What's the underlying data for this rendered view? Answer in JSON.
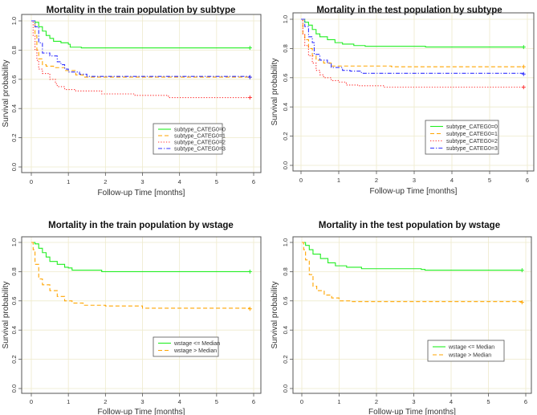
{
  "colors": {
    "0": "#22ee22",
    "1": "#ffa500",
    "2": "#ff3333",
    "3": "#3333ff",
    "grid": "#eeeacc",
    "frame": "#555555"
  },
  "chart_data": [
    {
      "type": "line",
      "title": "Mortality in the train population by subtype",
      "xlabel": "Follow-up Time [months]",
      "ylabel": "Survival probability",
      "xlim": [
        0,
        6
      ],
      "ylim": [
        0,
        1
      ],
      "xticks": [
        "0",
        "1",
        "2",
        "3",
        "4",
        "5",
        "6"
      ],
      "yticks": [
        "0.0",
        "0.2",
        "0.4",
        "0.6",
        "0.8",
        "1.0"
      ],
      "grid": true,
      "legend_position": "bottom-right",
      "series": [
        {
          "name": "subtype_CATEG0=0",
          "style": "solid",
          "color_key": "0",
          "points": [
            [
              0,
              1
            ],
            [
              0.1,
              0.99
            ],
            [
              0.2,
              0.96
            ],
            [
              0.3,
              0.93
            ],
            [
              0.4,
              0.9
            ],
            [
              0.5,
              0.88
            ],
            [
              0.6,
              0.86
            ],
            [
              0.8,
              0.85
            ],
            [
              1.0,
              0.84
            ],
            [
              1.05,
              0.82
            ],
            [
              1.35,
              0.815
            ],
            [
              5.9,
              0.815
            ]
          ]
        },
        {
          "name": "subtype_CATEG0=1",
          "style": "dashed",
          "color_key": "1",
          "points": [
            [
              0,
              1
            ],
            [
              0.1,
              0.9
            ],
            [
              0.15,
              0.8
            ],
            [
              0.2,
              0.74
            ],
            [
              0.3,
              0.7
            ],
            [
              0.4,
              0.69
            ],
            [
              0.6,
              0.68
            ],
            [
              0.9,
              0.66
            ],
            [
              1.2,
              0.63
            ],
            [
              1.4,
              0.615
            ],
            [
              5.9,
              0.615
            ]
          ]
        },
        {
          "name": "subtype_CATEG0=2",
          "style": "dotted",
          "color_key": "2",
          "points": [
            [
              0,
              1
            ],
            [
              0.05,
              0.9
            ],
            [
              0.1,
              0.8
            ],
            [
              0.15,
              0.73
            ],
            [
              0.2,
              0.67
            ],
            [
              0.3,
              0.64
            ],
            [
              0.5,
              0.6
            ],
            [
              0.65,
              0.57
            ],
            [
              0.7,
              0.55
            ],
            [
              0.9,
              0.53
            ],
            [
              1.2,
              0.52
            ],
            [
              1.9,
              0.5
            ],
            [
              2.8,
              0.49
            ],
            [
              3.7,
              0.475
            ],
            [
              5.9,
              0.475
            ]
          ]
        },
        {
          "name": "subtype_CATEG0=3",
          "style": "dotdash",
          "color_key": "3",
          "points": [
            [
              0,
              1
            ],
            [
              0.1,
              0.96
            ],
            [
              0.2,
              0.85
            ],
            [
              0.3,
              0.78
            ],
            [
              0.5,
              0.76
            ],
            [
              0.7,
              0.72
            ],
            [
              0.8,
              0.7
            ],
            [
              0.9,
              0.67
            ],
            [
              1.0,
              0.65
            ],
            [
              1.3,
              0.635
            ],
            [
              1.5,
              0.62
            ],
            [
              5.9,
              0.615
            ]
          ]
        }
      ]
    },
    {
      "type": "line",
      "title": "Mortality in the test population by subtype",
      "xlabel": "Follow-up Time [months]",
      "ylabel": "Survival probability",
      "xlim": [
        0,
        6
      ],
      "ylim": [
        0,
        1
      ],
      "xticks": [
        "0",
        "1",
        "2",
        "3",
        "4",
        "5",
        "6"
      ],
      "yticks": [
        "0.0",
        "0.2",
        "0.4",
        "0.6",
        "0.8",
        "1.0"
      ],
      "grid": true,
      "legend_position": "bottom-right",
      "series": [
        {
          "name": "subtype_CATEG0=0",
          "style": "solid",
          "color_key": "0",
          "points": [
            [
              0,
              1
            ],
            [
              0.1,
              0.98
            ],
            [
              0.2,
              0.96
            ],
            [
              0.3,
              0.93
            ],
            [
              0.4,
              0.9
            ],
            [
              0.5,
              0.88
            ],
            [
              0.7,
              0.86
            ],
            [
              0.9,
              0.84
            ],
            [
              1.1,
              0.83
            ],
            [
              1.4,
              0.82
            ],
            [
              1.7,
              0.815
            ],
            [
              3.3,
              0.81
            ],
            [
              5.9,
              0.81
            ]
          ]
        },
        {
          "name": "subtype_CATEG0=1",
          "style": "dashed",
          "color_key": "1",
          "points": [
            [
              0,
              1
            ],
            [
              0.05,
              0.9
            ],
            [
              0.1,
              0.86
            ],
            [
              0.2,
              0.8
            ],
            [
              0.3,
              0.75
            ],
            [
              0.4,
              0.72
            ],
            [
              0.6,
              0.7
            ],
            [
              0.8,
              0.68
            ],
            [
              2.4,
              0.675
            ],
            [
              5.9,
              0.675
            ]
          ]
        },
        {
          "name": "subtype_CATEG0=2",
          "style": "dotted",
          "color_key": "2",
          "points": [
            [
              0,
              1
            ],
            [
              0.05,
              0.9
            ],
            [
              0.1,
              0.82
            ],
            [
              0.2,
              0.75
            ],
            [
              0.3,
              0.7
            ],
            [
              0.4,
              0.65
            ],
            [
              0.5,
              0.62
            ],
            [
              0.6,
              0.6
            ],
            [
              0.8,
              0.58
            ],
            [
              1.0,
              0.57
            ],
            [
              1.2,
              0.55
            ],
            [
              1.5,
              0.545
            ],
            [
              2.2,
              0.535
            ],
            [
              5.9,
              0.535
            ]
          ]
        },
        {
          "name": "subtype_CATEG0=3",
          "style": "dotdash",
          "color_key": "3",
          "points": [
            [
              0,
              1
            ],
            [
              0.1,
              0.95
            ],
            [
              0.2,
              0.88
            ],
            [
              0.3,
              0.84
            ],
            [
              0.35,
              0.76
            ],
            [
              0.5,
              0.72
            ],
            [
              0.7,
              0.7
            ],
            [
              0.8,
              0.67
            ],
            [
              1.1,
              0.65
            ],
            [
              1.3,
              0.645
            ],
            [
              1.6,
              0.63
            ],
            [
              5.9,
              0.625
            ]
          ]
        }
      ]
    },
    {
      "type": "line",
      "title": "Mortality in the train population by wstage",
      "xlabel": "Follow-up Time [months]",
      "ylabel": "Survival probability",
      "xlim": [
        0,
        6
      ],
      "ylim": [
        0,
        1
      ],
      "xticks": [
        "0",
        "1",
        "2",
        "3",
        "4",
        "5",
        "6"
      ],
      "yticks": [
        "0.0",
        "0.2",
        "0.4",
        "0.6",
        "0.8",
        "1.0"
      ],
      "grid": true,
      "legend_position": "bottom-right",
      "series": [
        {
          "name": "wstage  <= Median",
          "style": "solid",
          "color_key": "0",
          "points": [
            [
              0,
              1
            ],
            [
              0.1,
              0.99
            ],
            [
              0.2,
              0.96
            ],
            [
              0.3,
              0.93
            ],
            [
              0.4,
              0.9
            ],
            [
              0.5,
              0.87
            ],
            [
              0.7,
              0.85
            ],
            [
              0.9,
              0.83
            ],
            [
              1.0,
              0.825
            ],
            [
              1.1,
              0.81
            ],
            [
              1.9,
              0.8
            ],
            [
              5.9,
              0.8
            ]
          ]
        },
        {
          "name": "wstage  > Median",
          "style": "dashed",
          "color_key": "1",
          "points": [
            [
              0,
              1
            ],
            [
              0.05,
              0.95
            ],
            [
              0.1,
              0.85
            ],
            [
              0.2,
              0.75
            ],
            [
              0.3,
              0.71
            ],
            [
              0.5,
              0.67
            ],
            [
              0.7,
              0.63
            ],
            [
              0.9,
              0.6
            ],
            [
              1.1,
              0.585
            ],
            [
              1.4,
              0.57
            ],
            [
              2,
              0.565
            ],
            [
              3,
              0.55
            ],
            [
              5.9,
              0.545
            ]
          ]
        }
      ]
    },
    {
      "type": "line",
      "title": "Mortality in the test population by wstage",
      "xlabel": "Follow-up Time [months]",
      "ylabel": "Survival probability",
      "xlim": [
        0,
        6
      ],
      "ylim": [
        0,
        1
      ],
      "xticks": [
        "0",
        "1",
        "2",
        "3",
        "4",
        "5",
        "6"
      ],
      "yticks": [
        "0.0",
        "0.2",
        "0.4",
        "0.6",
        "0.8",
        "1.0"
      ],
      "grid": true,
      "legend_position": "bottom-right",
      "series": [
        {
          "name": "wstage  <= Median",
          "style": "solid",
          "color_key": "0",
          "points": [
            [
              0,
              1
            ],
            [
              0.1,
              0.98
            ],
            [
              0.2,
              0.95
            ],
            [
              0.3,
              0.92
            ],
            [
              0.5,
              0.89
            ],
            [
              0.7,
              0.86
            ],
            [
              0.9,
              0.84
            ],
            [
              1.2,
              0.83
            ],
            [
              1.6,
              0.82
            ],
            [
              3.2,
              0.815
            ],
            [
              3.3,
              0.81
            ],
            [
              5.9,
              0.81
            ]
          ]
        },
        {
          "name": "wstage  > Median",
          "style": "dashed",
          "color_key": "1",
          "points": [
            [
              0,
              1
            ],
            [
              0.05,
              0.95
            ],
            [
              0.1,
              0.88
            ],
            [
              0.2,
              0.78
            ],
            [
              0.3,
              0.7
            ],
            [
              0.4,
              0.67
            ],
            [
              0.6,
              0.64
            ],
            [
              0.8,
              0.62
            ],
            [
              1.0,
              0.6
            ],
            [
              1.3,
              0.595
            ],
            [
              5.9,
              0.59
            ]
          ]
        }
      ]
    }
  ]
}
